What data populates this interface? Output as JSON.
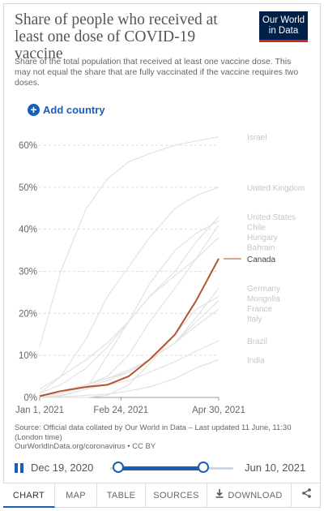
{
  "header": {
    "title": "Share of people who received at least one dose of COVID-19 vaccine",
    "subtitle": "Share of the total population that received at least one vaccine dose. This may not equal the share that are fully vaccinated if the vaccine requires two doses.",
    "logo_line1": "Our World",
    "logo_line2": "in Data"
  },
  "controls": {
    "add_country_label": "Add country",
    "add_icon": "plus-circle-icon"
  },
  "colors": {
    "highlight": "#b1552b",
    "background_series": "#e2e2e2",
    "accent": "#1a5fb4",
    "logo_bg": "#002147",
    "logo_stripe": "#ce261e"
  },
  "chart_data": {
    "type": "line",
    "x": [
      "2021-01-01",
      "2021-01-15",
      "2021-02-01",
      "2021-02-15",
      "2021-03-01",
      "2021-03-15",
      "2021-04-01",
      "2021-04-15",
      "2021-04-30"
    ],
    "x_ticks": [
      "Jan 1, 2021",
      "Feb 24, 2021",
      "Apr 30, 2021"
    ],
    "y_ticks": [
      "0%",
      "10%",
      "20%",
      "30%",
      "40%",
      "50%",
      "60%"
    ],
    "ylim": [
      0,
      60
    ],
    "grid": true,
    "highlighted_series": "Canada",
    "series": [
      {
        "name": "Israel",
        "values": [
          12,
          30,
          45,
          52,
          56,
          58,
          60,
          61,
          62
        ]
      },
      {
        "name": "United Kingdom",
        "values": [
          1,
          5,
          14,
          24,
          31,
          38,
          45,
          48,
          50
        ]
      },
      {
        "name": "United States",
        "values": [
          1,
          3,
          7,
          12,
          18,
          24,
          30,
          37,
          43
        ]
      },
      {
        "name": "Chile",
        "values": [
          0,
          0.5,
          2,
          10,
          18,
          27,
          35,
          39,
          42
        ]
      },
      {
        "name": "Hungary",
        "values": [
          0.2,
          1,
          3,
          5,
          10,
          18,
          26,
          33,
          41
        ]
      },
      {
        "name": "Bahrain",
        "values": [
          2,
          5,
          9,
          13,
          18,
          24,
          29,
          33,
          38
        ]
      },
      {
        "name": "Canada",
        "values": [
          0.3,
          1.5,
          2.5,
          3,
          5,
          9,
          15,
          23,
          33
        ]
      },
      {
        "name": "Germany",
        "values": [
          0.2,
          1,
          3,
          4.5,
          6.5,
          9,
          13,
          19,
          26
        ]
      },
      {
        "name": "Mongolia",
        "values": [
          0,
          0,
          0,
          0.5,
          3,
          8,
          15,
          21,
          24
        ]
      },
      {
        "name": "France",
        "values": [
          0.1,
          1,
          2.5,
          4,
          6,
          9,
          13,
          18,
          23
        ]
      },
      {
        "name": "Italy",
        "values": [
          0.2,
          1.5,
          3,
          4.5,
          6,
          9,
          13,
          17,
          21
        ]
      },
      {
        "name": "Brazil",
        "values": [
          0,
          0.3,
          2,
          3,
          4,
          6,
          8.5,
          11,
          13.5
        ]
      },
      {
        "name": "India",
        "values": [
          0,
          0.1,
          0.5,
          0.8,
          1.5,
          2.5,
          4.5,
          7,
          9
        ]
      }
    ]
  },
  "footer": {
    "source": "Source: Official data collated by Our World in Data – Last updated 11 June, 11:30 (London time)",
    "url": "OurWorldInData.org/coronavirus • CC BY"
  },
  "timeline": {
    "start_date": "Dec 19, 2020",
    "end_date": "Jun 10, 2021"
  },
  "tabs": [
    "CHART",
    "MAP",
    "TABLE",
    "SOURCES",
    "DOWNLOAD"
  ],
  "icons": {
    "download": "download-icon",
    "share": "share-icon",
    "pause": "pause-icon"
  }
}
